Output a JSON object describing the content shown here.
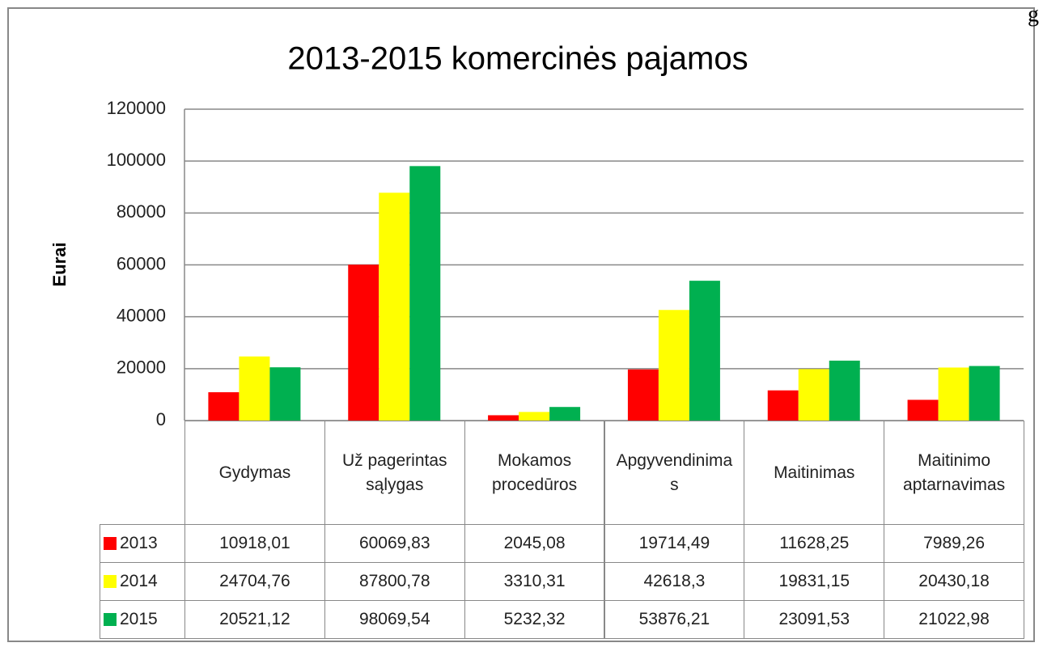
{
  "corner_text": "g",
  "chart_data": {
    "type": "bar",
    "title": "2013-2015 komercinės pajamos",
    "y_label": "Eurai",
    "categories": [
      "Gydymas",
      "Už pagerintas sąlygas",
      "Mokamos procedūros",
      "Apgyvendinimas",
      "Maitinimas",
      "Maitinimo aptarnavimas"
    ],
    "series": [
      {
        "name": "2013",
        "color": "#ff0000",
        "values": [
          10918.01,
          60069.83,
          2045.08,
          19714.49,
          11628.25,
          7989.26
        ],
        "value_labels": [
          "10918,01",
          "60069,83",
          "2045,08",
          "19714,49",
          "11628,25",
          "7989,26"
        ]
      },
      {
        "name": "2014",
        "color": "#ffff00",
        "values": [
          24704.76,
          87800.78,
          3310.31,
          42618.3,
          19831.15,
          20430.18
        ],
        "value_labels": [
          "24704,76",
          "87800,78",
          "3310,31",
          "42618,3",
          "19831,15",
          "20430,18"
        ]
      },
      {
        "name": "2015",
        "color": "#00b050",
        "values": [
          20521.12,
          98069.54,
          5232.32,
          53876.21,
          23091.53,
          21022.98
        ],
        "value_labels": [
          "20521,12",
          "98069,54",
          "5232,32",
          "53876,21",
          "23091,53",
          "21022,98"
        ]
      }
    ],
    "ylim": [
      0,
      120000
    ],
    "yticks": [
      0,
      20000,
      40000,
      60000,
      80000,
      100000,
      120000
    ],
    "grid": true
  }
}
